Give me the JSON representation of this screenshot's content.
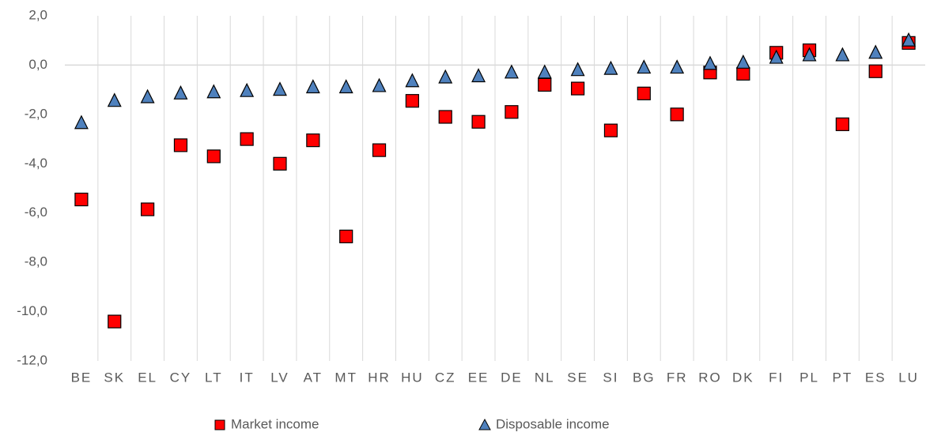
{
  "chart_data": {
    "type": "scatter",
    "categories": [
      "BE",
      "SK",
      "EL",
      "CY",
      "LT",
      "IT",
      "LV",
      "AT",
      "MT",
      "HR",
      "HU",
      "CZ",
      "EE",
      "DE",
      "NL",
      "SE",
      "SI",
      "BG",
      "FR",
      "RO",
      "DK",
      "FI",
      "PL",
      "PT",
      "ES",
      "LU"
    ],
    "series": [
      {
        "name": "Market income",
        "color": "#ff0000",
        "marker": "square",
        "values": [
          -5.45,
          -10.4,
          -5.85,
          -3.25,
          -3.7,
          -3.0,
          -4.0,
          -3.05,
          -6.95,
          -3.45,
          -1.45,
          -2.1,
          -2.3,
          -1.9,
          -0.8,
          -0.95,
          -2.65,
          -1.15,
          -2.0,
          -0.3,
          -0.35,
          0.5,
          0.6,
          -2.4,
          -0.25,
          0.9
        ]
      },
      {
        "name": "Disposable income",
        "color": "#4f81bd",
        "marker": "triangle",
        "values": [
          -2.35,
          -1.45,
          -1.3,
          -1.15,
          -1.1,
          -1.05,
          -1.0,
          -0.9,
          -0.9,
          -0.85,
          -0.65,
          -0.5,
          -0.45,
          -0.3,
          -0.3,
          -0.2,
          -0.15,
          -0.1,
          -0.1,
          0.05,
          0.1,
          0.3,
          0.4,
          0.4,
          0.5,
          1.0
        ]
      }
    ],
    "ylim": [
      -12,
      2
    ],
    "yticks": [
      {
        "value": -12,
        "label": "-12,0"
      },
      {
        "value": -10,
        "label": "-10,0"
      },
      {
        "value": -8,
        "label": "-8,0"
      },
      {
        "value": -6,
        "label": "-6,0"
      },
      {
        "value": -4,
        "label": "-4,0"
      },
      {
        "value": -2,
        "label": "-2,0"
      },
      {
        "value": 0,
        "label": "0,0"
      },
      {
        "value": 2,
        "label": "2,0"
      }
    ],
    "legend": "bottom"
  }
}
